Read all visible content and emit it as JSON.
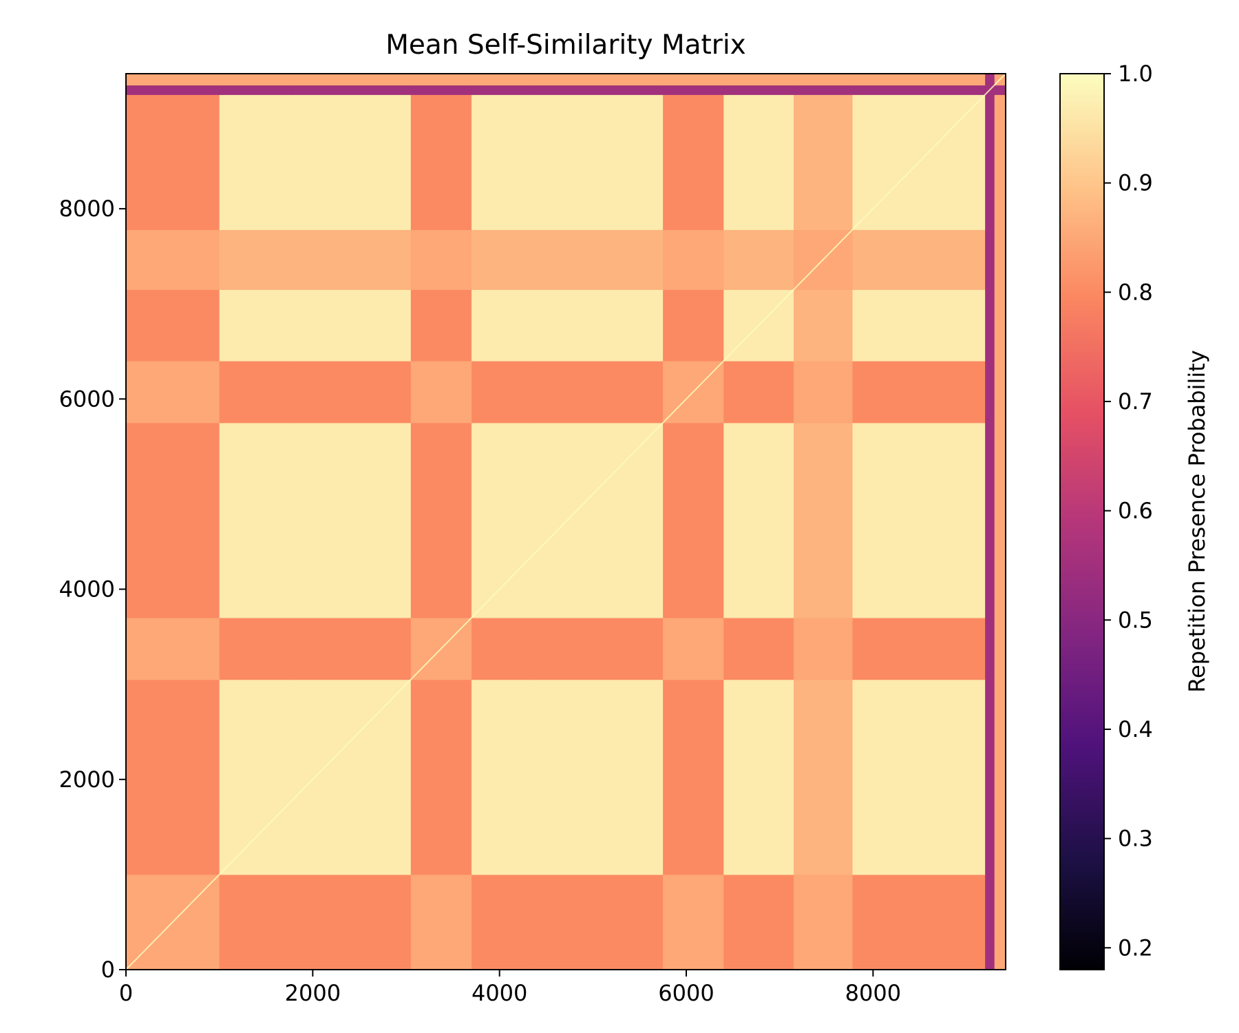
{
  "chart_data": {
    "type": "heatmap",
    "title": "Mean Self-Similarity Matrix",
    "xlabel": "",
    "ylabel": "",
    "xlim": [
      0,
      9420
    ],
    "ylim": [
      0,
      9420
    ],
    "x_ticks": [
      0,
      2000,
      4000,
      6000,
      8000
    ],
    "x_tick_labels": [
      "0",
      "2000",
      "4000",
      "6000",
      "8000"
    ],
    "y_ticks": [
      0,
      2000,
      4000,
      6000,
      8000
    ],
    "y_tick_labels": [
      "0",
      "2000",
      "4000",
      "6000",
      "8000"
    ],
    "colorbar": {
      "label": "Repetition Presence Probability",
      "colormap": "magma",
      "range": [
        0.18,
        1.0
      ],
      "ticks": [
        0.2,
        0.3,
        0.4,
        0.5,
        0.6,
        0.7,
        0.8,
        0.9,
        1.0
      ],
      "tick_labels": [
        "0.2",
        "0.3",
        "0.4",
        "0.5",
        "0.6",
        "0.7",
        "0.8",
        "0.9",
        "1.0"
      ]
    },
    "segments": [
      {
        "start": 0,
        "end": 320,
        "value": 0.8
      },
      {
        "start": 320,
        "end": 1000,
        "value": 0.8
      },
      {
        "start": 1000,
        "end": 1780,
        "value": 0.97
      },
      {
        "start": 1780,
        "end": 3050,
        "value": 0.97
      },
      {
        "start": 3050,
        "end": 3700,
        "value": 0.8
      },
      {
        "start": 3700,
        "end": 4380,
        "value": 0.97
      },
      {
        "start": 4380,
        "end": 5750,
        "value": 0.97
      },
      {
        "start": 5750,
        "end": 6400,
        "value": 0.8
      },
      {
        "start": 6400,
        "end": 7150,
        "value": 0.97
      },
      {
        "start": 7150,
        "end": 7780,
        "value": 0.87
      },
      {
        "start": 7780,
        "end": 9200,
        "value": 0.97
      },
      {
        "start": 9200,
        "end": 9300,
        "value": 0.55
      },
      {
        "start": 9300,
        "end": 9420,
        "value": 0.85
      }
    ],
    "grid": false
  }
}
